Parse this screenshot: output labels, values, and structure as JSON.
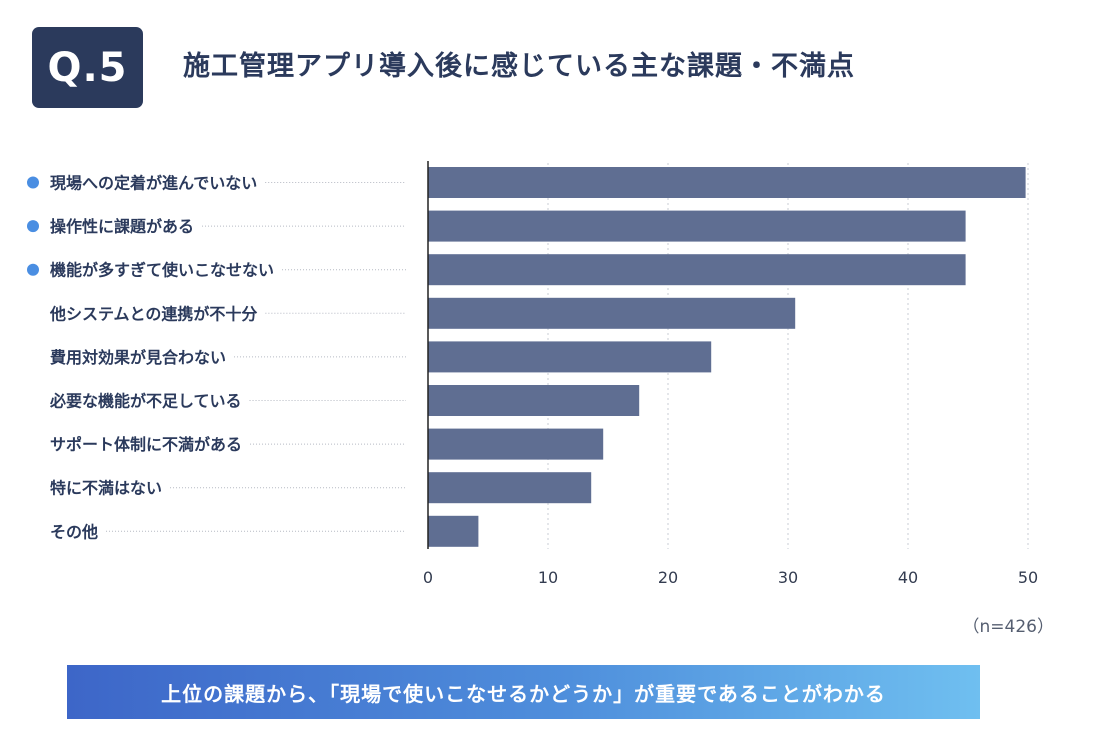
{
  "badge": "Q.5",
  "title": "施工管理アプリ導入後に感じている主な課題・不満点",
  "note": "（n=426）",
  "banner": "上位の課題から、「現場で使いこなせるかどうか」が重要であることがわかる",
  "colors": {
    "bar": "#5f6e92",
    "highlight_dot": "#4a8ee2",
    "text": "#2b3a5c",
    "badge_bg": "#2b3a5c"
  },
  "chart_data": {
    "type": "bar",
    "orientation": "horizontal",
    "categories": [
      "現場への定着が進んでいない",
      "操作性に課題がある",
      "機能が多すぎて使いこなせない",
      "他システムとの連携が不十分",
      "費用対効果が見合わない",
      "必要な機能が不足している",
      "サポート体制に不満がある",
      "特に不満はない",
      "その他"
    ],
    "values": [
      49.8,
      44.8,
      44.8,
      30.6,
      23.6,
      17.6,
      14.6,
      13.6,
      4.2
    ],
    "highlighted": [
      true,
      true,
      true,
      false,
      false,
      false,
      false,
      false,
      false
    ],
    "xticks": [
      0,
      10,
      20,
      30,
      40,
      50
    ],
    "xlim": [
      0,
      50
    ],
    "grid": true,
    "title": "",
    "xlabel": "",
    "ylabel": ""
  }
}
